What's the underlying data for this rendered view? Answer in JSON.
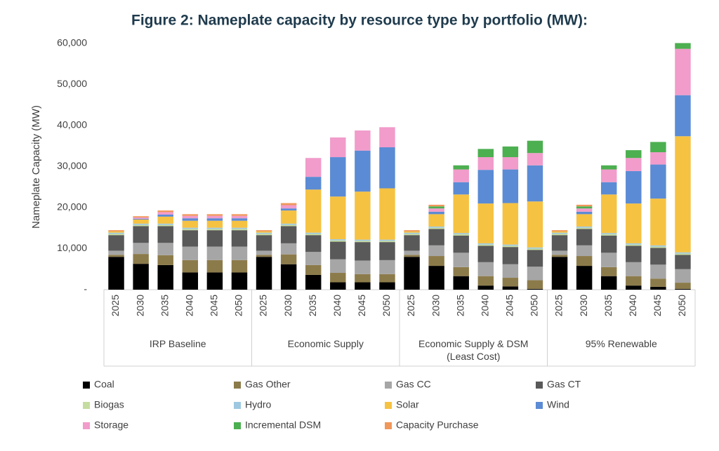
{
  "chart_data": {
    "type": "stacked_bar",
    "title": "Figure 2: Nameplate capacity by resource type by portfolio (MW):",
    "y_label": "Nameplate Capacity (MW)",
    "groups": [
      {
        "name": "IRP Baseline",
        "categories": [
          "2025",
          "2030",
          "2035",
          "2040",
          "2045",
          "2050"
        ]
      },
      {
        "name": "Economic Supply",
        "categories": [
          "2025",
          "2030",
          "2035",
          "2040",
          "2045",
          "2050"
        ]
      },
      {
        "name": "Economic Supply & DSM (Least Cost)",
        "categories": [
          "2025",
          "2030",
          "2035",
          "2040",
          "2045",
          "2050"
        ]
      },
      {
        "name": "95% Renewable",
        "categories": [
          "2025",
          "2030",
          "2035",
          "2040",
          "2045",
          "2050"
        ]
      }
    ],
    "ylim": [
      0,
      60000
    ],
    "yticks": [
      {
        "value": 0,
        "label": "-"
      },
      {
        "value": 10000,
        "label": "10,000"
      },
      {
        "value": 20000,
        "label": "20,000"
      },
      {
        "value": 30000,
        "label": "30,000"
      },
      {
        "value": 40000,
        "label": "40,000"
      },
      {
        "value": 50000,
        "label": "50,000"
      },
      {
        "value": 60000,
        "label": "60,000"
      }
    ],
    "grid": false,
    "legend": "bottom",
    "series": [
      {
        "name": "Coal",
        "color": "#000000",
        "values": [
          8000,
          6300,
          6000,
          4200,
          4200,
          4200,
          8000,
          6200,
          3600,
          1800,
          1800,
          1800,
          8000,
          5800,
          3300,
          1000,
          800,
          200,
          8000,
          5800,
          3300,
          1000,
          700,
          200
        ]
      },
      {
        "name": "Gas Other",
        "color": "#8c7b4a",
        "values": [
          500,
          2400,
          2400,
          3000,
          3000,
          3000,
          500,
          2400,
          2400,
          2300,
          2000,
          2000,
          500,
          2400,
          2200,
          2300,
          2100,
          2100,
          500,
          2400,
          2200,
          2300,
          2000,
          1500
        ]
      },
      {
        "name": "Gas CC",
        "color": "#a6a6a6",
        "values": [
          1000,
          2700,
          3000,
          3300,
          3300,
          3300,
          1000,
          2700,
          3200,
          3300,
          3300,
          3400,
          1000,
          2600,
          3500,
          3400,
          3300,
          3300,
          1000,
          2600,
          3500,
          3400,
          3400,
          3300
        ]
      },
      {
        "name": "Gas CT",
        "color": "#595959",
        "values": [
          3800,
          4100,
          4100,
          4000,
          4000,
          4000,
          3800,
          4200,
          4100,
          4300,
          4500,
          4400,
          3800,
          4000,
          4200,
          4000,
          4200,
          4100,
          3800,
          4000,
          4200,
          4000,
          4100,
          3500
        ]
      },
      {
        "name": "Biogas",
        "color": "#c5dca0",
        "values": [
          300,
          300,
          300,
          300,
          300,
          300,
          300,
          300,
          300,
          300,
          300,
          300,
          300,
          300,
          300,
          300,
          300,
          300,
          300,
          300,
          300,
          300,
          300,
          300
        ]
      },
      {
        "name": "Hydro",
        "color": "#9dc8e0",
        "values": [
          300,
          300,
          300,
          300,
          300,
          300,
          300,
          300,
          300,
          300,
          300,
          300,
          300,
          300,
          300,
          300,
          300,
          300,
          300,
          300,
          300,
          300,
          300,
          300
        ]
      },
      {
        "name": "Solar",
        "color": "#f6c242",
        "values": [
          300,
          1000,
          1700,
          1700,
          1700,
          1700,
          300,
          3200,
          10500,
          10400,
          11700,
          12500,
          300,
          3000,
          9400,
          9700,
          10100,
          11200,
          300,
          3000,
          9400,
          9700,
          11400,
          28300
        ]
      },
      {
        "name": "Wind",
        "color": "#5b8bd4",
        "values": [
          0,
          200,
          500,
          600,
          600,
          600,
          0,
          500,
          3100,
          9600,
          10000,
          10000,
          0,
          600,
          3000,
          8200,
          8200,
          8800,
          0,
          600,
          3000,
          7900,
          8300,
          10000
        ]
      },
      {
        "name": "Storage",
        "color": "#f19ccb",
        "values": [
          0,
          300,
          600,
          600,
          600,
          600,
          0,
          800,
          4600,
          4800,
          4900,
          4900,
          0,
          800,
          3100,
          3100,
          3000,
          3000,
          0,
          800,
          3100,
          3200,
          3000,
          11300
        ]
      },
      {
        "name": "Incremental DSM",
        "color": "#4caf50",
        "values": [
          0,
          0,
          0,
          0,
          0,
          0,
          0,
          0,
          0,
          0,
          0,
          0,
          0,
          500,
          1000,
          2000,
          2600,
          3000,
          0,
          500,
          1000,
          1900,
          2500,
          1400
        ]
      },
      {
        "name": "Capacity Purchase",
        "color": "#f0975a",
        "values": [
          300,
          300,
          400,
          400,
          400,
          400,
          300,
          500,
          0,
          0,
          0,
          0,
          300,
          400,
          0,
          0,
          0,
          0,
          300,
          400,
          0,
          0,
          0,
          0
        ]
      }
    ]
  }
}
